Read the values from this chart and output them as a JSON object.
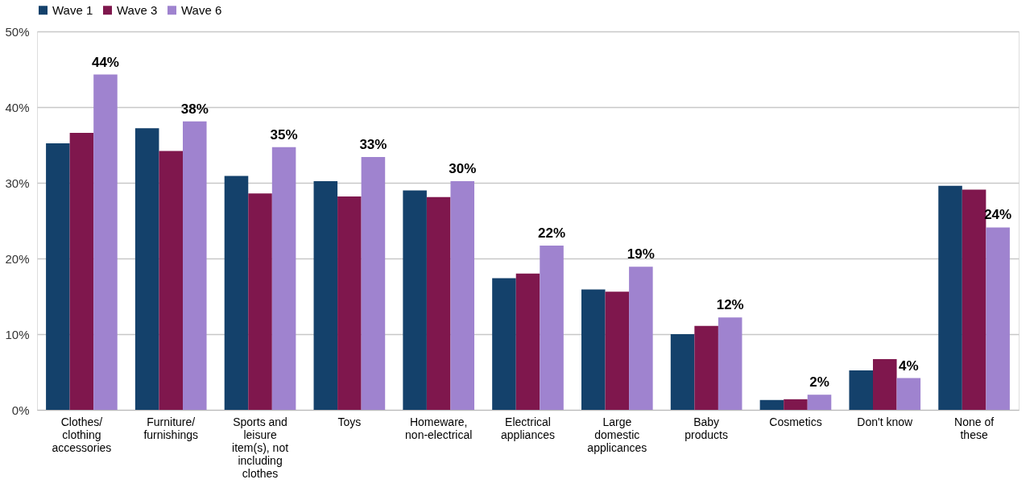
{
  "chart_data": {
    "type": "bar",
    "categories": [
      "Clothes/ clothing accessories",
      "Furniture/ furnishings",
      "Sports and leisure item(s), not including clothes",
      "Toys",
      "Homeware, non-electrical",
      "Electrical appliances",
      "Large domestic applicances",
      "Baby products",
      "Cosmetics",
      "Don't know",
      "None of these"
    ],
    "series": [
      {
        "name": "Wave 1",
        "color": "#14416b",
        "values": [
          35.2,
          37.2,
          30.9,
          30.2,
          29.0,
          17.4,
          15.9,
          10.0,
          1.3,
          5.2,
          29.6
        ]
      },
      {
        "name": "Wave 3",
        "color": "#7f174d",
        "values": [
          36.6,
          34.2,
          28.6,
          28.2,
          28.1,
          18.0,
          15.6,
          11.1,
          1.4,
          6.7,
          29.1
        ]
      },
      {
        "name": "Wave 6",
        "color": "#9f83cf",
        "values": [
          44.3,
          38.1,
          34.7,
          33.4,
          30.2,
          21.7,
          18.9,
          12.2,
          2.0,
          4.2,
          24.1
        ],
        "value_labels": [
          "44%",
          "38%",
          "35%",
          "33%",
          "30%",
          "22%",
          "19%",
          "12%",
          "2%",
          "4%",
          "24%"
        ]
      }
    ],
    "ylim": [
      0,
      50
    ],
    "yticks": [
      {
        "value": 0,
        "label": "0%"
      },
      {
        "value": 10,
        "label": "10%"
      },
      {
        "value": 20,
        "label": "20%"
      },
      {
        "value": 30,
        "label": "30%"
      },
      {
        "value": 40,
        "label": "40%"
      },
      {
        "value": 50,
        "label": "50%"
      }
    ],
    "grid": "y",
    "legend": "top"
  }
}
